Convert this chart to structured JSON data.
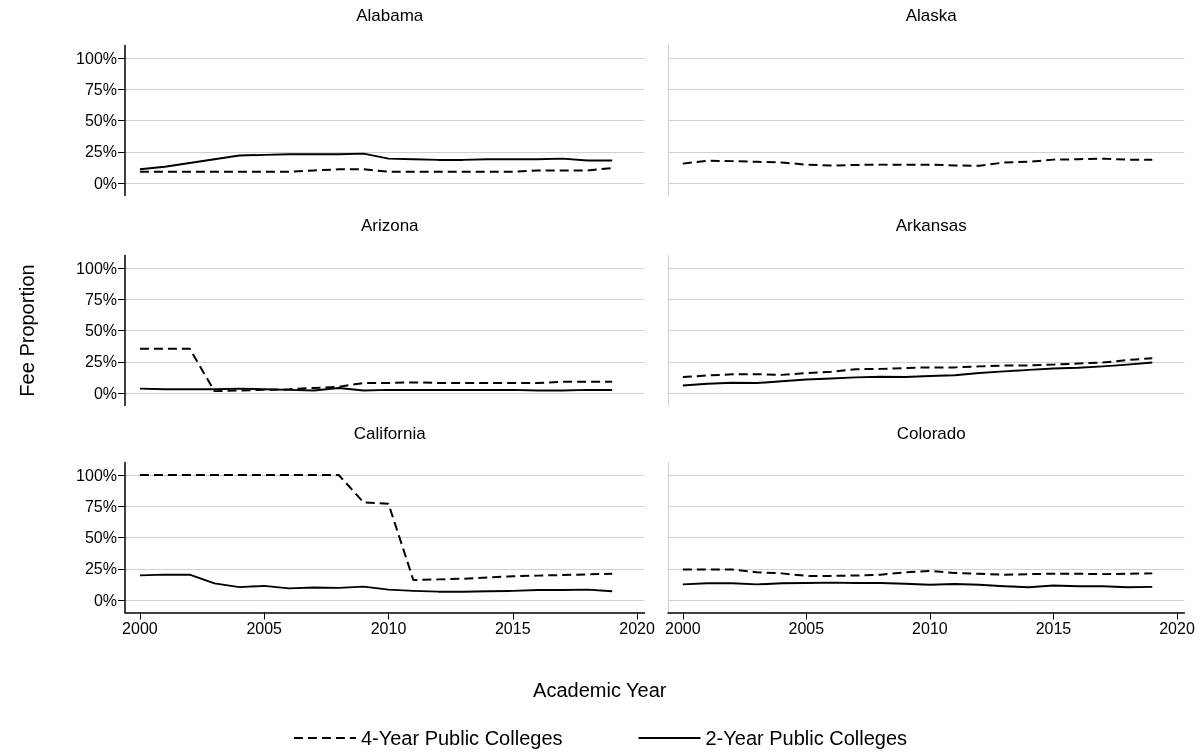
{
  "chart_data": [
    {
      "type": "line",
      "title": "Alabama",
      "x": [
        2000,
        2001,
        2002,
        2003,
        2004,
        2005,
        2006,
        2007,
        2008,
        2009,
        2010,
        2011,
        2012,
        2013,
        2014,
        2015,
        2016,
        2017,
        2018,
        2019
      ],
      "xlim": [
        1999.4,
        2020.3
      ],
      "xticks": [
        2000,
        2005,
        2010,
        2015,
        2020
      ],
      "ylim": [
        -10,
        110
      ],
      "yticks": [
        {
          "value": 0,
          "label": "0%"
        },
        {
          "value": 25,
          "label": "25%"
        },
        {
          "value": 50,
          "label": "50%"
        },
        {
          "value": 75,
          "label": "75%"
        },
        {
          "value": 100,
          "label": "100%"
        }
      ],
      "grid": "y",
      "tick_labels": "y",
      "marker": "none",
      "series": [
        {
          "color": "#000000",
          "line_style": "dashed",
          "values": [
            9,
            9,
            9,
            9,
            9,
            9,
            9,
            10,
            11,
            11,
            9,
            9,
            9,
            9,
            9,
            9,
            10,
            10,
            10,
            12
          ]
        },
        {
          "color": "#000000",
          "line_style": "solid",
          "values": [
            11,
            13,
            16,
            19,
            22,
            22.5,
            23,
            23,
            23,
            23.5,
            19.5,
            19,
            18.5,
            18.5,
            19,
            19,
            19,
            19.5,
            18,
            18
          ]
        }
      ]
    },
    {
      "type": "line",
      "title": "Alaska",
      "x": [
        2000,
        2001,
        2002,
        2003,
        2004,
        2005,
        2006,
        2007,
        2008,
        2009,
        2010,
        2011,
        2012,
        2013,
        2014,
        2015,
        2016,
        2017,
        2018,
        2019
      ],
      "xlim": [
        1999.4,
        2020.3
      ],
      "xticks": [
        2000,
        2005,
        2010,
        2015,
        2020
      ],
      "ylim": [
        -10,
        110
      ],
      "yticks": [
        {
          "value": 0,
          "label": null
        },
        {
          "value": 25,
          "label": null
        },
        {
          "value": 50,
          "label": null
        },
        {
          "value": 75,
          "label": null
        },
        {
          "value": 100,
          "label": null
        }
      ],
      "grid": "y",
      "tick_labels": false,
      "marker": "none",
      "series": [
        {
          "color": "#000000",
          "line_style": "dashed",
          "values": [
            15.5,
            17.8,
            17.5,
            17,
            16.4,
            14.7,
            14,
            14.4,
            14.7,
            14.7,
            14.7,
            14,
            13.8,
            16.4,
            17,
            18.7,
            19,
            19.5,
            18.7,
            18.7
          ]
        }
      ]
    },
    {
      "type": "line",
      "title": "Arizona",
      "ylabel": "Fee Proportion",
      "x": [
        2000,
        2001,
        2002,
        2003,
        2004,
        2005,
        2006,
        2007,
        2008,
        2009,
        2010,
        2011,
        2012,
        2013,
        2014,
        2015,
        2016,
        2017,
        2018,
        2019
      ],
      "xlim": [
        1999.4,
        2020.3
      ],
      "xticks": [
        2000,
        2005,
        2010,
        2015,
        2020
      ],
      "ylim": [
        -10,
        110
      ],
      "yticks": [
        {
          "value": 0,
          "label": "0%"
        },
        {
          "value": 25,
          "label": "25%"
        },
        {
          "value": 50,
          "label": "50%"
        },
        {
          "value": 75,
          "label": "75%"
        },
        {
          "value": 100,
          "label": "100%"
        }
      ],
      "grid": "y",
      "tick_labels": "y",
      "marker": "none",
      "series": [
        {
          "color": "#000000",
          "line_style": "dashed",
          "values": [
            35.5,
            35.5,
            35.5,
            1.5,
            2,
            2.5,
            3,
            4,
            5,
            8,
            8,
            8.5,
            8,
            8,
            8,
            8,
            8,
            9,
            9,
            9
          ]
        },
        {
          "color": "#000000",
          "line_style": "solid",
          "values": [
            3.5,
            3,
            3,
            3,
            3.5,
            3,
            2.5,
            2,
            4,
            2,
            2.5,
            2.5,
            2.5,
            2.5,
            2.5,
            2.5,
            2,
            2,
            2.5,
            2.5
          ]
        }
      ]
    },
    {
      "type": "line",
      "title": "Arkansas",
      "x": [
        2000,
        2001,
        2002,
        2003,
        2004,
        2005,
        2006,
        2007,
        2008,
        2009,
        2010,
        2011,
        2012,
        2013,
        2014,
        2015,
        2016,
        2017,
        2018,
        2019
      ],
      "xlim": [
        1999.4,
        2020.3
      ],
      "xticks": [
        2000,
        2005,
        2010,
        2015,
        2020
      ],
      "ylim": [
        -10,
        110
      ],
      "yticks": [
        {
          "value": 0,
          "label": null
        },
        {
          "value": 25,
          "label": null
        },
        {
          "value": 50,
          "label": null
        },
        {
          "value": 75,
          "label": null
        },
        {
          "value": 100,
          "label": null
        }
      ],
      "grid": "y",
      "tick_labels": false,
      "marker": "none",
      "series": [
        {
          "color": "#000000",
          "line_style": "dashed",
          "values": [
            12.8,
            14,
            15,
            15,
            14.5,
            16,
            17,
            19,
            19.3,
            20,
            20.5,
            20.5,
            21.3,
            22,
            22,
            22.7,
            23.6,
            24.4,
            26.4,
            27.8
          ]
        },
        {
          "color": "#000000",
          "line_style": "solid",
          "values": [
            6,
            7.4,
            8.2,
            8,
            9.4,
            10.8,
            11.6,
            12.5,
            13,
            12.8,
            13.6,
            14.2,
            16,
            17.3,
            18.5,
            19.6,
            20.2,
            21.3,
            22.7,
            24.4
          ]
        }
      ]
    },
    {
      "type": "line",
      "title": "California",
      "xlabel": "Academic Year",
      "x": [
        2000,
        2001,
        2002,
        2003,
        2004,
        2005,
        2006,
        2007,
        2008,
        2009,
        2010,
        2011,
        2012,
        2013,
        2014,
        2015,
        2016,
        2017,
        2018,
        2019
      ],
      "xlim": [
        1999.4,
        2020.3
      ],
      "xticks": [
        2000,
        2005,
        2010,
        2015,
        2020
      ],
      "ylim": [
        -10,
        110
      ],
      "yticks": [
        {
          "value": 0,
          "label": "0%"
        },
        {
          "value": 25,
          "label": "25%"
        },
        {
          "value": 50,
          "label": "50%"
        },
        {
          "value": 75,
          "label": "75%"
        },
        {
          "value": 100,
          "label": "100%"
        }
      ],
      "grid": "y",
      "legend": "bottom",
      "marker": "none",
      "series": [
        {
          "name": "4-Year Public Colleges",
          "color": "#000000",
          "line_style": "dashed",
          "values": [
            100,
            100,
            100,
            100,
            100,
            100,
            100,
            100,
            100,
            78,
            77,
            16,
            16.5,
            17,
            18,
            19,
            19.5,
            20,
            20.5,
            21
          ]
        },
        {
          "name": "2-Year Public Colleges",
          "color": "#000000",
          "line_style": "solid",
          "values": [
            19.7,
            20.3,
            20.3,
            13.3,
            10.3,
            11.3,
            9.3,
            10,
            9.7,
            10.7,
            8.3,
            7.3,
            6.7,
            6.7,
            7,
            7.3,
            8,
            8,
            8.3,
            7
          ]
        }
      ]
    },
    {
      "type": "line",
      "title": "Colorado",
      "x": [
        2000,
        2001,
        2002,
        2003,
        2004,
        2005,
        2006,
        2007,
        2008,
        2009,
        2010,
        2011,
        2012,
        2013,
        2014,
        2015,
        2016,
        2017,
        2018,
        2019
      ],
      "xlim": [
        1999.4,
        2020.3
      ],
      "xticks": [
        2000,
        2005,
        2010,
        2015,
        2020
      ],
      "ylim": [
        -10,
        110
      ],
      "yticks": [
        {
          "value": 0,
          "label": null
        },
        {
          "value": 25,
          "label": null
        },
        {
          "value": 50,
          "label": null
        },
        {
          "value": 75,
          "label": null
        },
        {
          "value": 100,
          "label": null
        }
      ],
      "grid": "y",
      "tick_labels": "x",
      "marker": "none",
      "series": [
        {
          "color": "#000000",
          "line_style": "dashed",
          "values": [
            24.4,
            24.4,
            24.4,
            22.2,
            21.3,
            19.3,
            19.3,
            19.6,
            20.2,
            22.2,
            23.3,
            21.6,
            21,
            20.2,
            20.7,
            21,
            21,
            20.7,
            21,
            21.3
          ]
        },
        {
          "color": "#000000",
          "line_style": "solid",
          "values": [
            12.5,
            13.4,
            13.4,
            12.5,
            13.4,
            13.6,
            13.9,
            13.6,
            13.6,
            13,
            12.2,
            12.8,
            12.2,
            11,
            10.2,
            11.6,
            11,
            11,
            10.2,
            10.5
          ]
        }
      ]
    }
  ]
}
